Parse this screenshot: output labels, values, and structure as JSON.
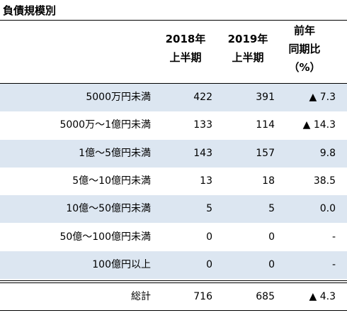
{
  "title": "負債規模別",
  "table": {
    "header": [
      [
        "2018年",
        "上半期"
      ],
      [
        "2019年",
        "上半期"
      ],
      [
        "前年",
        "同期比",
        "（%）"
      ]
    ],
    "rows": [
      [
        "5000万円未満",
        "422",
        "391",
        "▲ 7.3"
      ],
      [
        "5000万～1億円未満",
        "133",
        "114",
        "▲ 14.3"
      ],
      [
        "1億～5億円未満",
        "143",
        "157",
        "9.8"
      ],
      [
        "5億～10億円未満",
        "13",
        "18",
        "38.5"
      ],
      [
        "10億～50億円未満",
        "5",
        "5",
        "0.0"
      ],
      [
        "50億～100億円未満",
        "0",
        "0",
        "-"
      ],
      [
        "100億円以上",
        "0",
        "0",
        "-"
      ]
    ],
    "total": [
      "総計",
      "716",
      "685",
      "▲ 4.3"
    ]
  }
}
